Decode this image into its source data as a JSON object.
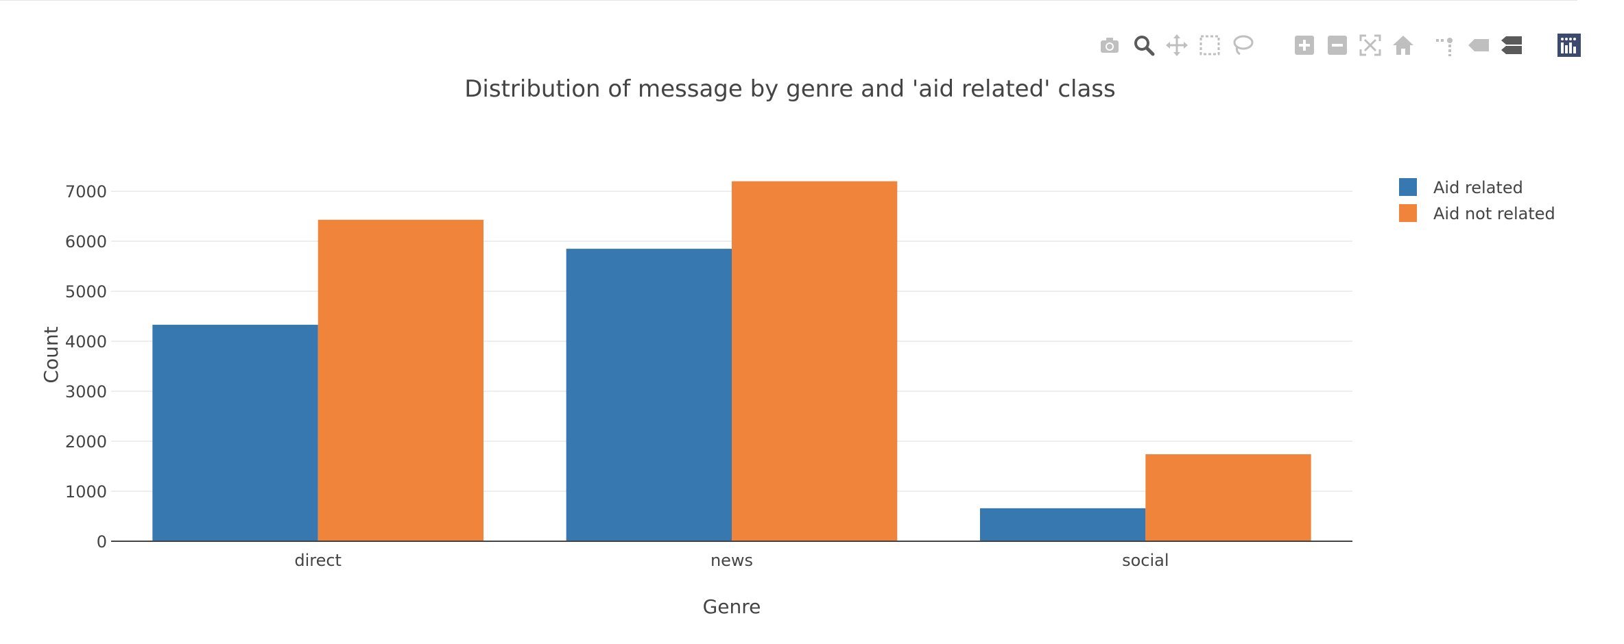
{
  "colors": {
    "aid_related": "#3878b0",
    "aid_not_related": "#f0843a",
    "axis_text": "#444444",
    "gridline": "#e8e8e8",
    "modebar_icon": "#bfbfbf",
    "modebar_active": "#5a5a5a",
    "logo_bg": "#3d4a70"
  },
  "modebar": [
    {
      "name": "camera-icon"
    },
    {
      "name": "zoom-icon"
    },
    {
      "name": "pan-icon"
    },
    {
      "name": "box-select-icon"
    },
    {
      "name": "lasso-select-icon"
    },
    {
      "name": "zoom-in-icon"
    },
    {
      "name": "zoom-out-icon"
    },
    {
      "name": "autoscale-icon"
    },
    {
      "name": "reset-axes-icon"
    },
    {
      "name": "spike-lines-icon"
    },
    {
      "name": "hover-closest-icon"
    },
    {
      "name": "hover-compare-icon"
    },
    {
      "name": "plotly-logo-icon"
    }
  ],
  "chart_data": {
    "type": "bar",
    "title": "Distribution of message by genre and 'aid related' class",
    "xlabel": "Genre",
    "ylabel": "Count",
    "categories": [
      "direct",
      "news",
      "social"
    ],
    "series": [
      {
        "name": "Aid related",
        "values": [
          4330,
          5850,
          660
        ]
      },
      {
        "name": "Aid not related",
        "values": [
          6430,
          7200,
          1740
        ]
      }
    ],
    "ylim": [
      0,
      7400
    ],
    "yticks": [
      0,
      1000,
      2000,
      3000,
      4000,
      5000,
      6000,
      7000
    ],
    "grid": true,
    "legend_position": "top-right"
  }
}
